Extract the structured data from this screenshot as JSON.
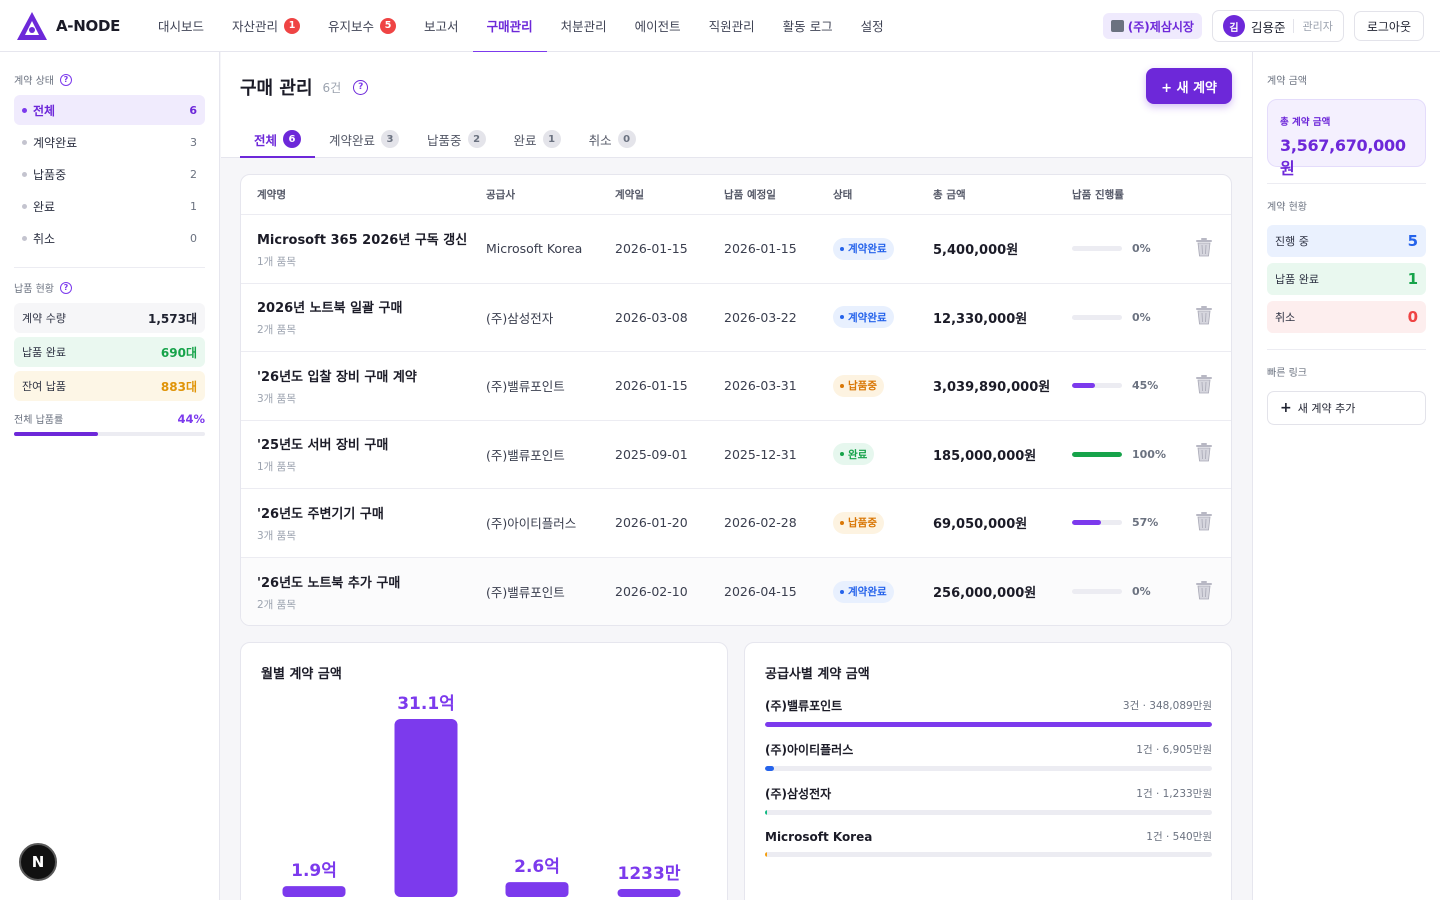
{
  "brand": {
    "name": "A-NODE"
  },
  "nav": {
    "items": [
      {
        "label": "대시보드",
        "badge": null
      },
      {
        "label": "자산관리",
        "badge": "1"
      },
      {
        "label": "유지보수",
        "badge": "5"
      },
      {
        "label": "보고서",
        "badge": null
      },
      {
        "label": "구매관리",
        "badge": null,
        "active": true
      },
      {
        "label": "처분관리",
        "badge": null
      },
      {
        "label": "에이전트",
        "badge": null
      },
      {
        "label": "직원관리",
        "badge": null
      },
      {
        "label": "활동 로그",
        "badge": null
      },
      {
        "label": "설정",
        "badge": null
      }
    ],
    "company": "(주)제삼시장",
    "user_initial": "김",
    "user_name": "김용준",
    "user_role": "관리자",
    "logout": "로그아웃"
  },
  "sidebar": {
    "status_title": "계약 상태",
    "statuses": [
      {
        "label": "전체",
        "count": "6",
        "active": true
      },
      {
        "label": "계약완료",
        "count": "3"
      },
      {
        "label": "납품중",
        "count": "2"
      },
      {
        "label": "완료",
        "count": "1"
      },
      {
        "label": "취소",
        "count": "0"
      }
    ],
    "delivery_title": "납품 현황",
    "delivery": [
      {
        "label": "계약 수량",
        "value": "1,573대"
      },
      {
        "label": "납품 완료",
        "value": "690대"
      },
      {
        "label": "잔여 납품",
        "value": "883대"
      }
    ],
    "rate_label": "전체 납품률",
    "rate_value": "44%",
    "rate_fraction": 0.44
  },
  "main": {
    "title": "구매 관리",
    "count": "6건",
    "new_button": "+ 새 계약",
    "tabs": [
      {
        "label": "전체",
        "count": "6",
        "active": true
      },
      {
        "label": "계약완료",
        "count": "3"
      },
      {
        "label": "납품중",
        "count": "2"
      },
      {
        "label": "완료",
        "count": "1"
      },
      {
        "label": "취소",
        "count": "0"
      }
    ],
    "columns": [
      "계약명",
      "공급사",
      "계약일",
      "납품 예정일",
      "상태",
      "총 금액",
      "납품 진행률"
    ],
    "rows": [
      {
        "name": "Microsoft 365 2026년 구독 갱신",
        "items": "1개 품목",
        "supplier": "Microsoft Korea",
        "contract_date": "2026-01-15",
        "due_date": "2026-01-15",
        "status": "계약완료",
        "status_color": "blue",
        "amount": "5,400,000원",
        "progress": 0,
        "progress_label": "0%",
        "progress_color": "#7c3aed"
      },
      {
        "name": "2026년 노트북 일괄 구매",
        "items": "2개 품목",
        "supplier": "(주)삼성전자",
        "contract_date": "2026-03-08",
        "due_date": "2026-03-22",
        "status": "계약완료",
        "status_color": "blue",
        "amount": "12,330,000원",
        "progress": 0,
        "progress_label": "0%",
        "progress_color": "#7c3aed"
      },
      {
        "name": "'26년도 입찰 장비 구매 계약",
        "items": "3개 품목",
        "supplier": "(주)밸류포인트",
        "contract_date": "2026-01-15",
        "due_date": "2026-03-31",
        "status": "납품중",
        "status_color": "amber",
        "amount": "3,039,890,000원",
        "progress": 45,
        "progress_label": "45%",
        "progress_color": "#7c3aed"
      },
      {
        "name": "'25년도 서버 장비 구매",
        "items": "1개 품목",
        "supplier": "(주)밸류포인트",
        "contract_date": "2025-09-01",
        "due_date": "2025-12-31",
        "status": "완료",
        "status_color": "green",
        "amount": "185,000,000원",
        "progress": 100,
        "progress_label": "100%",
        "progress_color": "#16a34a"
      },
      {
        "name": "'26년도 주변기기 구매",
        "items": "3개 품목",
        "supplier": "(주)아이티플러스",
        "contract_date": "2026-01-20",
        "due_date": "2026-02-28",
        "status": "납품중",
        "status_color": "amber",
        "amount": "69,050,000원",
        "progress": 57,
        "progress_label": "57%",
        "progress_color": "#7c3aed"
      },
      {
        "name": "'26년도 노트북 추가 구매",
        "items": "2개 품목",
        "supplier": "(주)밸류포인트",
        "contract_date": "2026-02-10",
        "due_date": "2026-04-15",
        "status": "계약완료",
        "status_color": "blue",
        "amount": "256,000,000원",
        "progress": 0,
        "progress_label": "0%",
        "progress_color": "#7c3aed"
      }
    ]
  },
  "chart_data": [
    {
      "type": "bar",
      "title": "월별 계약 금액",
      "categories": [
        "",
        "",
        "",
        ""
      ],
      "values": [
        190000000,
        3110000000,
        260000000,
        12330000
      ],
      "data_labels": [
        "1.9억",
        "31.1억",
        "2.6억",
        "1233만"
      ],
      "ylim": [
        0,
        3110000000
      ],
      "xlabel": "",
      "ylabel": "",
      "color": "#7c3aed"
    },
    {
      "type": "bar",
      "title": "공급사별 계약 금액",
      "categories": [
        "(주)밸류포인트",
        "(주)아이티플러스",
        "(주)삼성전자",
        "Microsoft Korea"
      ],
      "values": [
        348089,
        6905,
        1233,
        540
      ],
      "unit": "만원",
      "meta": [
        "3건 · 348,089만원",
        "1건 · 6,905만원",
        "1건 · 1,233만원",
        "1건 · 540만원"
      ],
      "colors": [
        "#7c3aed",
        "#2563eb",
        "#10b981",
        "#f59e0b"
      ]
    }
  ],
  "right_panel": {
    "amount_title": "계약 금액",
    "total_label": "총 계약 금액",
    "total_value": "3,567,670,000원",
    "status_title": "계약 현황",
    "stats": [
      {
        "label": "진행 중",
        "value": "5"
      },
      {
        "label": "납품 완료",
        "value": "1"
      },
      {
        "label": "취소",
        "value": "0"
      }
    ],
    "links_title": "빠른 링크",
    "quick_add": "새 계약 추가"
  },
  "fab": {
    "label": "N"
  },
  "colors": {
    "accent": "#6d28d9",
    "blue": "#2563eb",
    "green": "#16a34a",
    "amber": "#d97706",
    "red": "#ef4444"
  }
}
